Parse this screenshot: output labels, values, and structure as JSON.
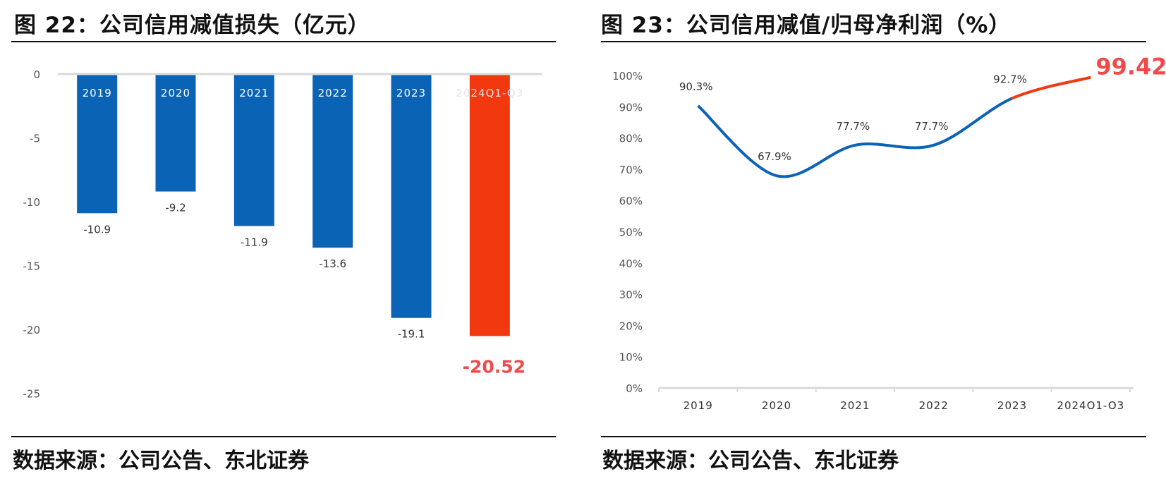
{
  "left": {
    "title": "图 22：公司信用减值损失（亿元）",
    "source": "数据来源：公司公告、东北证券"
  },
  "right": {
    "title": "图 23：公司信用减值/归母净利润（%）",
    "source": "数据来源：公司公告、东北证券"
  },
  "colors": {
    "blue": "#0b63b6",
    "red": "#f2380f",
    "red_label": "#ef4b4b",
    "axis": "#d9d9d9",
    "tick_text": "#555555"
  },
  "chart_data": [
    {
      "type": "bar",
      "title": "公司信用减值损失（亿元）",
      "categories": [
        "2019",
        "2020",
        "2021",
        "2022",
        "2023",
        "2024Q1-Q3"
      ],
      "values": [
        -10.9,
        -9.2,
        -11.9,
        -13.6,
        -19.1,
        -20.52
      ],
      "data_labels": [
        "-10.9",
        "-9.2",
        "-11.9",
        "-13.6",
        "-19.1",
        "-20.52"
      ],
      "highlight_index": 5,
      "yticks": [
        0,
        -5,
        -10,
        -15,
        -20,
        -25
      ],
      "ylim": [
        -25,
        0
      ],
      "grid": false
    },
    {
      "type": "line",
      "title": "公司信用减值/归母净利润（%）",
      "categories": [
        "2019",
        "2020",
        "2021",
        "2022",
        "2023",
        "2024Q1-Q3"
      ],
      "values": [
        90.3,
        67.9,
        77.7,
        77.7,
        92.7,
        99.42
      ],
      "data_labels": [
        "90.3%",
        "67.9%",
        "77.7%",
        "77.7%",
        "92.7%",
        "99.42%"
      ],
      "highlight_index": 5,
      "yticks": [
        "0%",
        "10%",
        "20%",
        "30%",
        "40%",
        "50%",
        "60%",
        "70%",
        "80%",
        "90%",
        "100%"
      ],
      "ylim": [
        0,
        100
      ],
      "grid": false
    }
  ]
}
